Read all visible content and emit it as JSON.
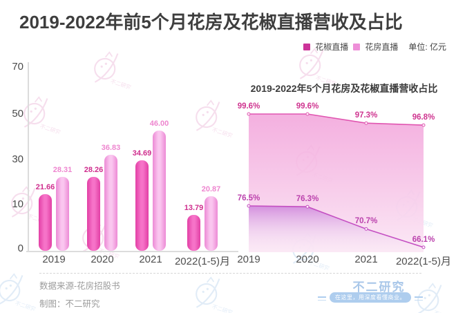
{
  "title": "2019-2022年前5个月花房及花椒直播营收及占比",
  "legend": {
    "series": [
      {
        "label": "花椒直播",
        "color": "#cc3399"
      },
      {
        "label": "花房直播",
        "color": "#ee8fd8"
      }
    ],
    "unit": "单位: 亿元"
  },
  "chart_data": [
    {
      "type": "bar",
      "title": "",
      "categories": [
        "2019",
        "2020",
        "2021",
        "2022(1-5)月"
      ],
      "series": [
        {
          "name": "花椒直播",
          "values": [
            21.66,
            28.26,
            34.69,
            13.79
          ],
          "labels": [
            "21.66",
            "28.26",
            "34.69",
            "13.79"
          ],
          "color": "#e23fa5"
        },
        {
          "name": "花房直播",
          "values": [
            28.31,
            36.83,
            46.0,
            20.87
          ],
          "labels": [
            "28.31",
            "36.83",
            "46.00",
            "20.87"
          ],
          "color": "#ee8fd8"
        }
      ],
      "yticks": [
        "70",
        "50",
        "30",
        "10",
        "0"
      ],
      "ylim": [
        0,
        70
      ],
      "unit": "亿元",
      "legend_position": "top-right",
      "grid": false
    },
    {
      "type": "area",
      "title": "2019-2022年5个月花房及花椒直播营收占比",
      "categories": [
        "2019",
        "2020",
        "2021",
        "2022(1-5)月"
      ],
      "series": [
        {
          "name": "",
          "values": [
            99.6,
            99.6,
            97.3,
            96.8
          ],
          "labels": [
            "99.6%",
            "99.6%",
            "97.3%",
            "96.8%"
          ]
        },
        {
          "name": "",
          "values": [
            76.5,
            76.3,
            70.7,
            66.1
          ],
          "labels": [
            "76.5%",
            "76.3%",
            "70.7%",
            "66.1%"
          ]
        }
      ],
      "value_suffix": "%",
      "grid": false
    }
  ],
  "footer": {
    "source": "数据来源-花房招股书",
    "credit": "制图：不二研究"
  },
  "branding": {
    "name": "不二研究",
    "tagline": "在这里，用深度看懂商业。",
    "watermark_text": "不二研究"
  },
  "colors": {
    "title_text": "#3e3e3e",
    "huajiao_bar_edge": "#e23fa5",
    "huajiao_bar_mid": "#f673c8",
    "huafang_bar_edge": "#ec8ad5",
    "huafang_bar_mid": "#fac6ef",
    "huajiao_value_label": "#cf2d8d",
    "huafang_value_label": "#ee86cf",
    "area_upper_line": "#e055b0",
    "area_lower_line": "#c44fc2",
    "area_upper_label": "#cf3590",
    "area_lower_label": "#bb42ad",
    "brand_blue": "#a9c7e9",
    "pill_blue": "#aecdee",
    "watermark_pink": "#efc4df",
    "watermark_blue": "#c9ddf1",
    "axis_text": "#4a4a4a",
    "footer_text": "#9b9b9b"
  }
}
